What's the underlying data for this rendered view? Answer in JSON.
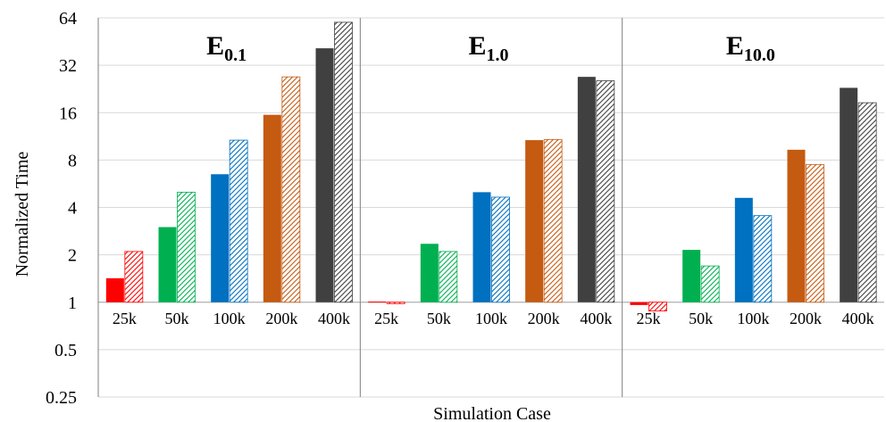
{
  "chart_data": {
    "type": "bar",
    "scale": "log2",
    "xlabel": "Simulation Case",
    "ylabel": "Normalized Time",
    "ylim": [
      0.25,
      64
    ],
    "yticks": [
      {
        "value": 0.25,
        "label": "0.25"
      },
      {
        "value": 0.5,
        "label": "0.5"
      },
      {
        "value": 1,
        "label": "1"
      },
      {
        "value": 2,
        "label": "2"
      },
      {
        "value": 4,
        "label": "4"
      },
      {
        "value": 8,
        "label": "8"
      },
      {
        "value": 16,
        "label": "16"
      },
      {
        "value": 32,
        "label": "32"
      },
      {
        "value": 64,
        "label": "64"
      }
    ],
    "grid": true,
    "categories": [
      "25k",
      "50k",
      "100k",
      "200k",
      "400k"
    ],
    "colors": {
      "25k": "#ff0000",
      "50k": "#00b050",
      "100k": "#0070c0",
      "200k": "#c55a11",
      "400k": "#404040"
    },
    "panels": [
      {
        "title_main": "E",
        "title_sub": "0.1",
        "solid": [
          1.42,
          3.0,
          6.5,
          15.5,
          41.0
        ],
        "hatched": [
          2.1,
          5.0,
          10.7,
          27.0,
          60.0
        ]
      },
      {
        "title_main": "E",
        "title_sub": "1.0",
        "solid": [
          1.01,
          2.35,
          5.0,
          10.7,
          27.0
        ],
        "hatched": [
          0.98,
          2.1,
          4.65,
          10.8,
          25.5
        ]
      },
      {
        "title_main": "E",
        "title_sub": "10.0",
        "solid": [
          0.96,
          2.15,
          4.6,
          9.3,
          23.0
        ],
        "hatched": [
          0.88,
          1.7,
          3.55,
          7.5,
          18.5
        ]
      }
    ]
  }
}
